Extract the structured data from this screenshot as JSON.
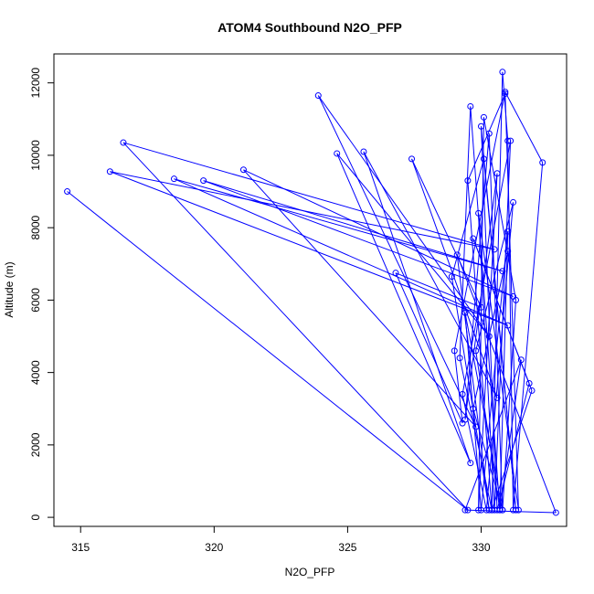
{
  "chart_data": {
    "type": "line",
    "title": "ATOM4 Southbound N2O_PFP",
    "xlabel": "N2O_PFP",
    "ylabel": "Altitude (m)",
    "xlim": [
      314,
      333.2
    ],
    "ylim": [
      -250,
      12800
    ],
    "xticks": [
      315,
      320,
      325,
      330
    ],
    "yticks": [
      0,
      2000,
      4000,
      6000,
      8000,
      10000,
      12000
    ],
    "grid": false,
    "series": [
      {
        "color": "#0000ff",
        "marker": "open-circle",
        "x": [
          314.5,
          329.5,
          316.6,
          330.5,
          316.1,
          331.0,
          318.5,
          330.8,
          319.6,
          331.2,
          321.1,
          329.8,
          323.9,
          330.3,
          324.6,
          329.6,
          325.6,
          330.6,
          327.4,
          330.0,
          326.8,
          329.3,
          329.0,
          330.9,
          332.3,
          331.2,
          331.0,
          330.8,
          330.4,
          329.2,
          329.6,
          330.7,
          331.5,
          329.4,
          332.8,
          329.1,
          330.3,
          328.9,
          330.1,
          331.3,
          330.0,
          330.6,
          331.8,
          329.7,
          331.9,
          330.4,
          329.5,
          330.9,
          331.4,
          329.9,
          330.5,
          331.1,
          329.3,
          330.2,
          331.2,
          329.8,
          330.7,
          331.0,
          330.0,
          329.4,
          330.8,
          331.3,
          330.1,
          329.9,
          330.6,
          329.4,
          330.3,
          330.8,
          329.7,
          331.0
        ],
        "y": [
          9000,
          200,
          10350,
          7400,
          9550,
          5300,
          9350,
          6800,
          9300,
          6100,
          9600,
          2500,
          11650,
          5000,
          10050,
          1500,
          10100,
          3300,
          9900,
          5800,
          6750,
          2600,
          4600,
          11750,
          9800,
          200,
          10400,
          12300,
          200,
          4400,
          11350,
          200,
          4350,
          200,
          130,
          7250,
          200,
          6650,
          9900,
          200,
          10800,
          200,
          3700,
          7700,
          3500,
          200,
          9300,
          11700,
          200,
          8400,
          200,
          10400,
          3400,
          200,
          8700,
          4600,
          200,
          7900,
          200,
          5650,
          200,
          6000,
          11050,
          200,
          9500,
          2700,
          10600,
          200,
          3000,
          7350
        ]
      }
    ]
  }
}
